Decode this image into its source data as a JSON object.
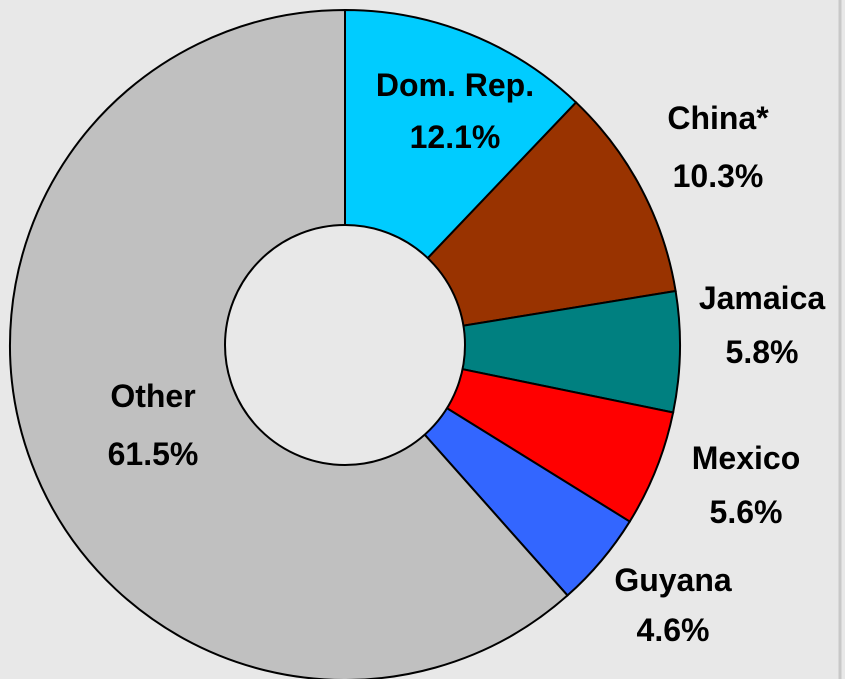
{
  "chart_data": {
    "type": "pie",
    "style": "donut",
    "title": "",
    "slices": [
      {
        "label": "Dom. Rep.",
        "value": 12.1,
        "value_label": "12.1%",
        "color": "#00ccff"
      },
      {
        "label": "China*",
        "value": 10.3,
        "value_label": "10.3%",
        "color": "#993300"
      },
      {
        "label": "Jamaica",
        "value": 5.8,
        "value_label": "5.8%",
        "color": "#008080"
      },
      {
        "label": "Mexico",
        "value": 5.6,
        "value_label": "5.6%",
        "color": "#ff0000"
      },
      {
        "label": "Guyana",
        "value": 4.6,
        "value_label": "4.6%",
        "color": "#3366ff"
      },
      {
        "label": "Other",
        "value": 61.5,
        "value_label": "61.5%",
        "color": "#c0c0c0"
      }
    ],
    "start": "12 o'clock",
    "direction": "clockwise",
    "legend": "none",
    "background_color": "#e8e8e8",
    "hole_color": "#e8e8e8",
    "border_color": "#000000"
  }
}
